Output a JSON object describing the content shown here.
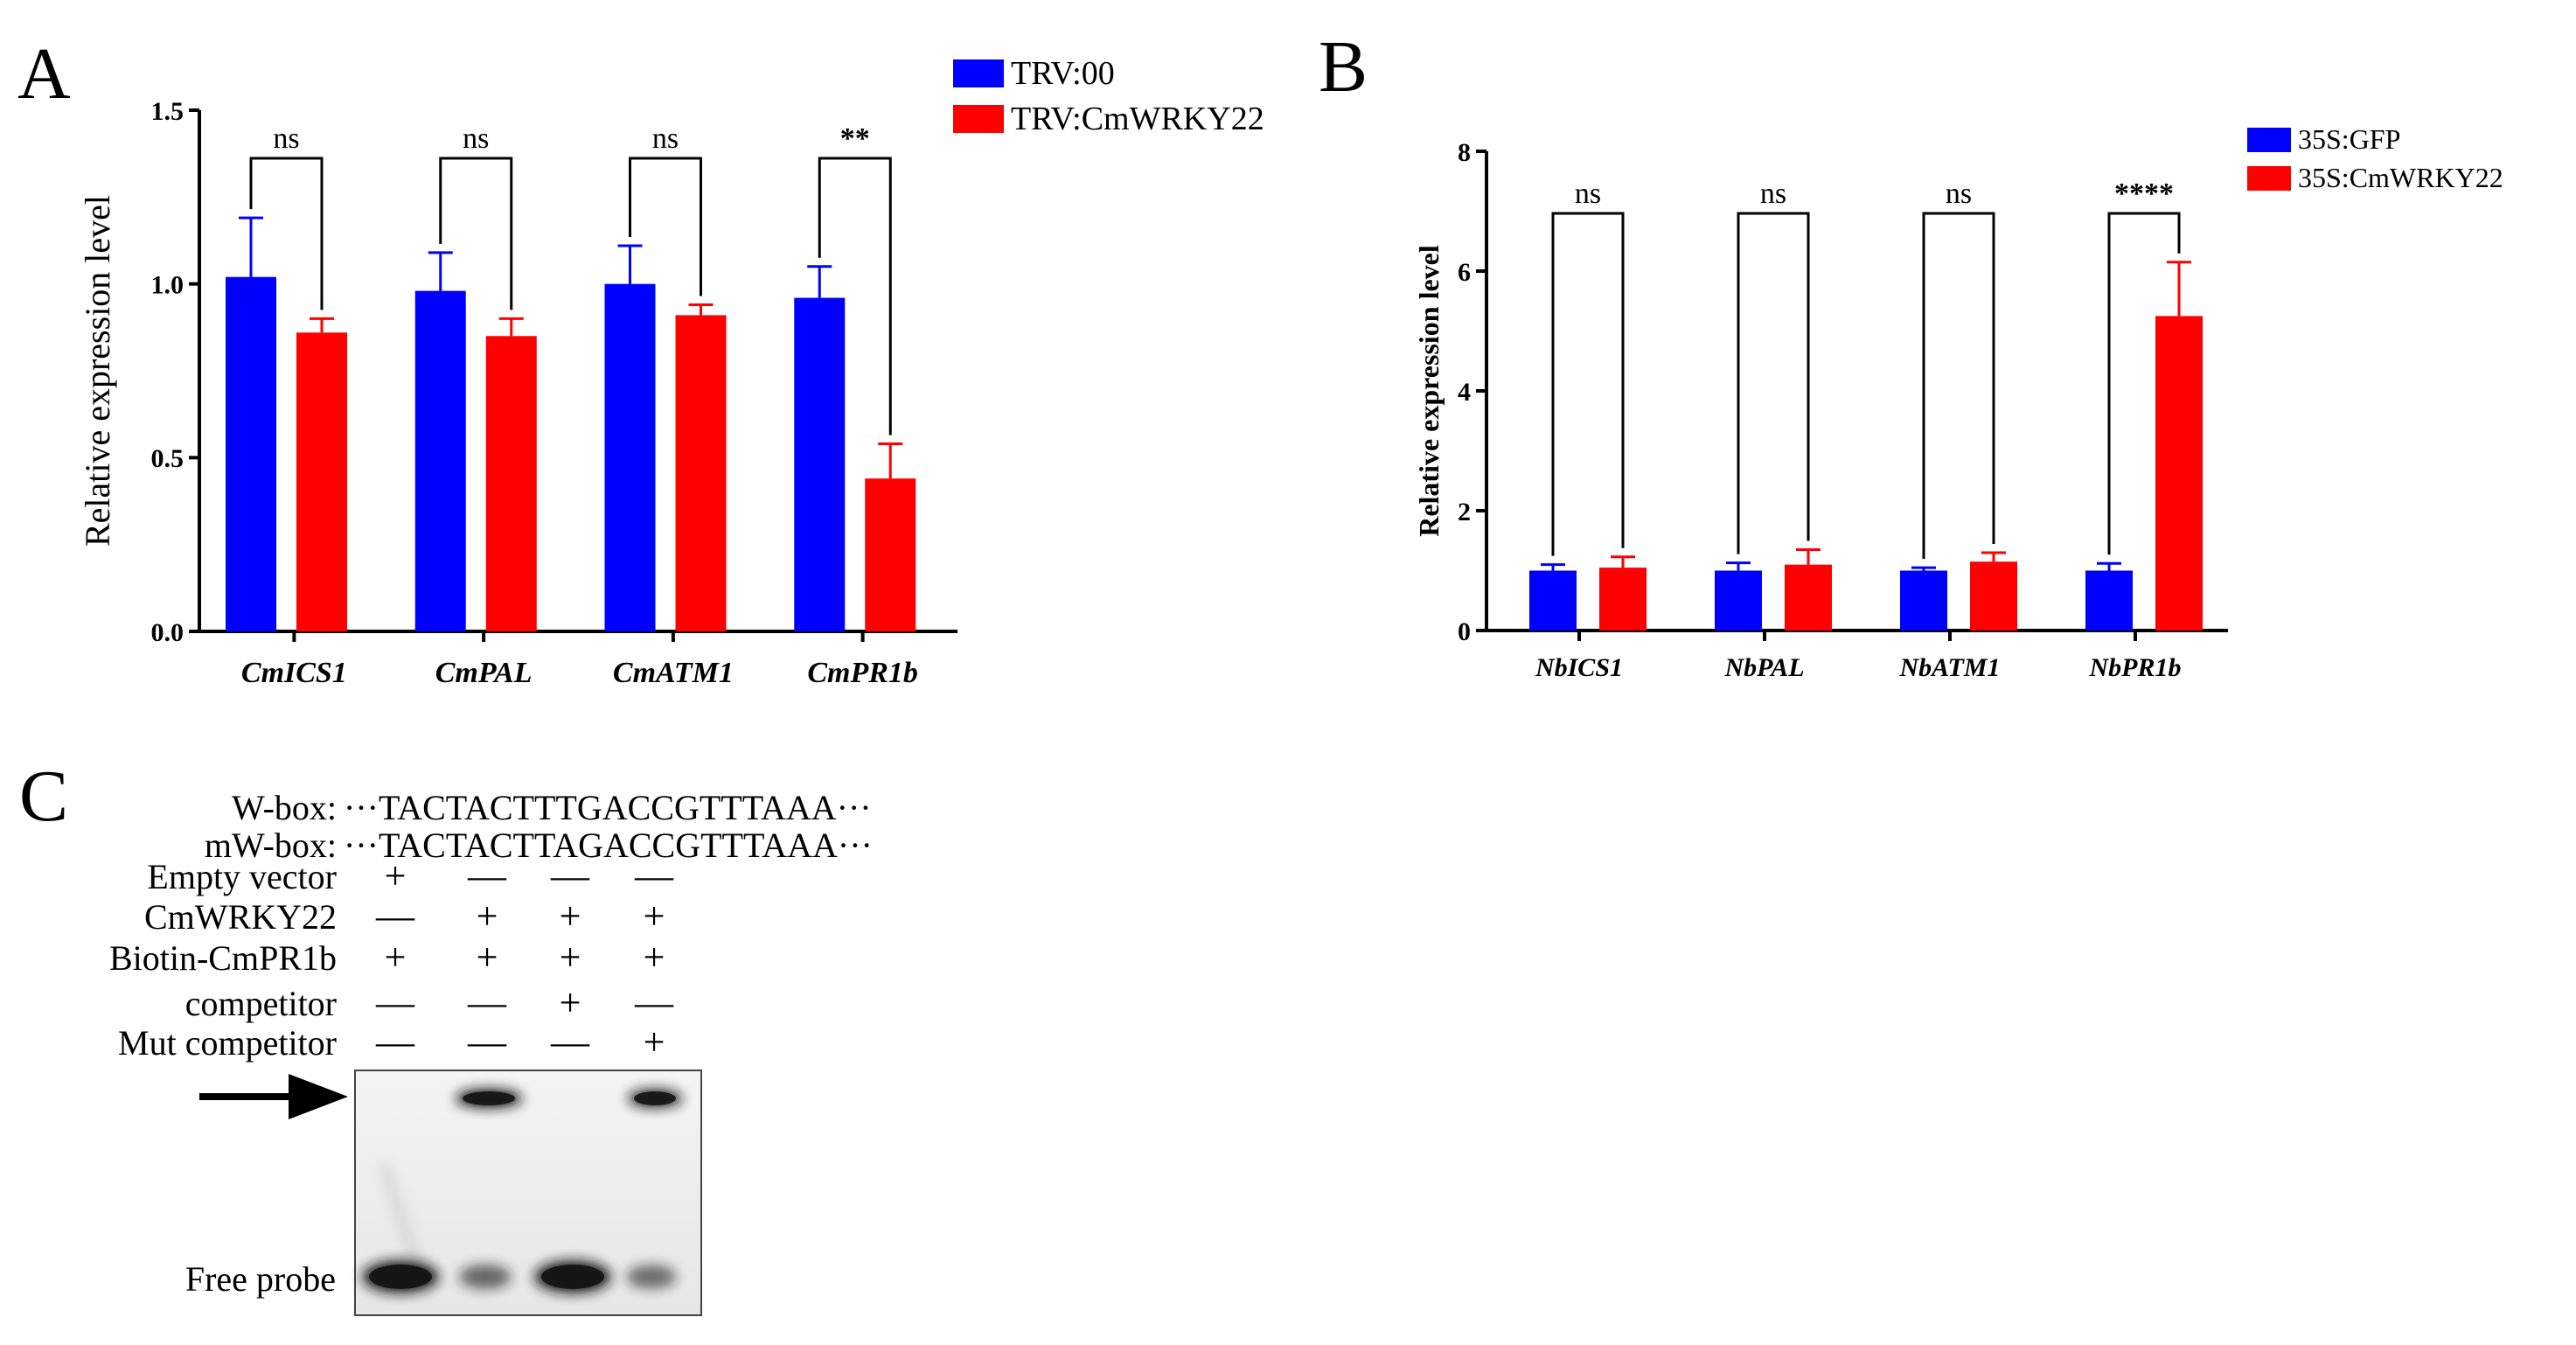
{
  "colors": {
    "series_blue": "#0000FF",
    "series_red": "#FF0000",
    "axis": "#000000",
    "gel_bg": "#F2F2F2",
    "band": "#141414"
  },
  "panels": {
    "a": "A",
    "b": "B",
    "c": "C"
  },
  "chart_data": [
    {
      "type": "bar",
      "panel": "A",
      "ylabel": "Relative expression level",
      "xlabel": "",
      "ylim": [
        0,
        1.5
      ],
      "yticks": [
        "0.0",
        "0.5",
        "1.0",
        "1.5"
      ],
      "categories": [
        "CmICS1",
        "CmPAL",
        "CmATM1",
        "CmPR1b"
      ],
      "series": [
        {
          "name": "TRV:00",
          "color": "#0000FF",
          "values": [
            1.02,
            0.98,
            1.0,
            0.96
          ],
          "errors": [
            0.17,
            0.11,
            0.11,
            0.09
          ]
        },
        {
          "name": "TRV:CmWRKY22",
          "color": "#FF0000",
          "values": [
            0.86,
            0.85,
            0.91,
            0.44
          ],
          "errors": [
            0.04,
            0.05,
            0.03,
            0.1
          ]
        }
      ],
      "significance": [
        "ns",
        "ns",
        "ns",
        "**"
      ],
      "legend_position": "top-right"
    },
    {
      "type": "bar",
      "panel": "B",
      "ylabel": "Relative expression level",
      "xlabel": "",
      "ylim": [
        0,
        8
      ],
      "yticks": [
        "0",
        "2",
        "4",
        "6",
        "8"
      ],
      "categories": [
        "NbICS1",
        "NbPAL",
        "NbATM1",
        "NbPR1b"
      ],
      "series": [
        {
          "name": "35S:GFP",
          "color": "#0000FF",
          "values": [
            1.0,
            1.0,
            1.0,
            1.0
          ],
          "errors": [
            0.1,
            0.13,
            0.05,
            0.12
          ]
        },
        {
          "name": "35S:CmWRKY22",
          "color": "#FF0000",
          "values": [
            1.05,
            1.1,
            1.15,
            5.25
          ],
          "errors": [
            0.18,
            0.25,
            0.15,
            0.9
          ]
        }
      ],
      "significance": [
        "ns",
        "ns",
        "ns",
        "****"
      ],
      "legend_position": "top-right"
    }
  ],
  "emsa": {
    "sequences": [
      {
        "label": "W-box:",
        "seq": "···TACTACTTTGACCGTTTAAA···"
      },
      {
        "label": "mW-box:",
        "seq": "···TACTACTTAGACCGTTTAAA···"
      }
    ],
    "conditions": [
      {
        "label": "Empty vector",
        "lanes": [
          "+",
          "—",
          "—",
          "—"
        ]
      },
      {
        "label": "CmWRKY22",
        "lanes": [
          "—",
          "+",
          "+",
          "+"
        ]
      },
      {
        "label": "Biotin-CmPR1b",
        "lanes": [
          "+",
          "+",
          "+",
          "+"
        ]
      },
      {
        "label": "competitor",
        "lanes": [
          "—",
          "—",
          "+",
          "—"
        ]
      },
      {
        "label": "Mut competitor",
        "lanes": [
          "—",
          "—",
          "—",
          "+"
        ]
      }
    ],
    "free_probe_label": "Free probe",
    "shift_band_intensity": [
      0,
      1,
      0,
      0.8
    ],
    "free_band_intensity": [
      1,
      0.45,
      1,
      0.4
    ]
  }
}
